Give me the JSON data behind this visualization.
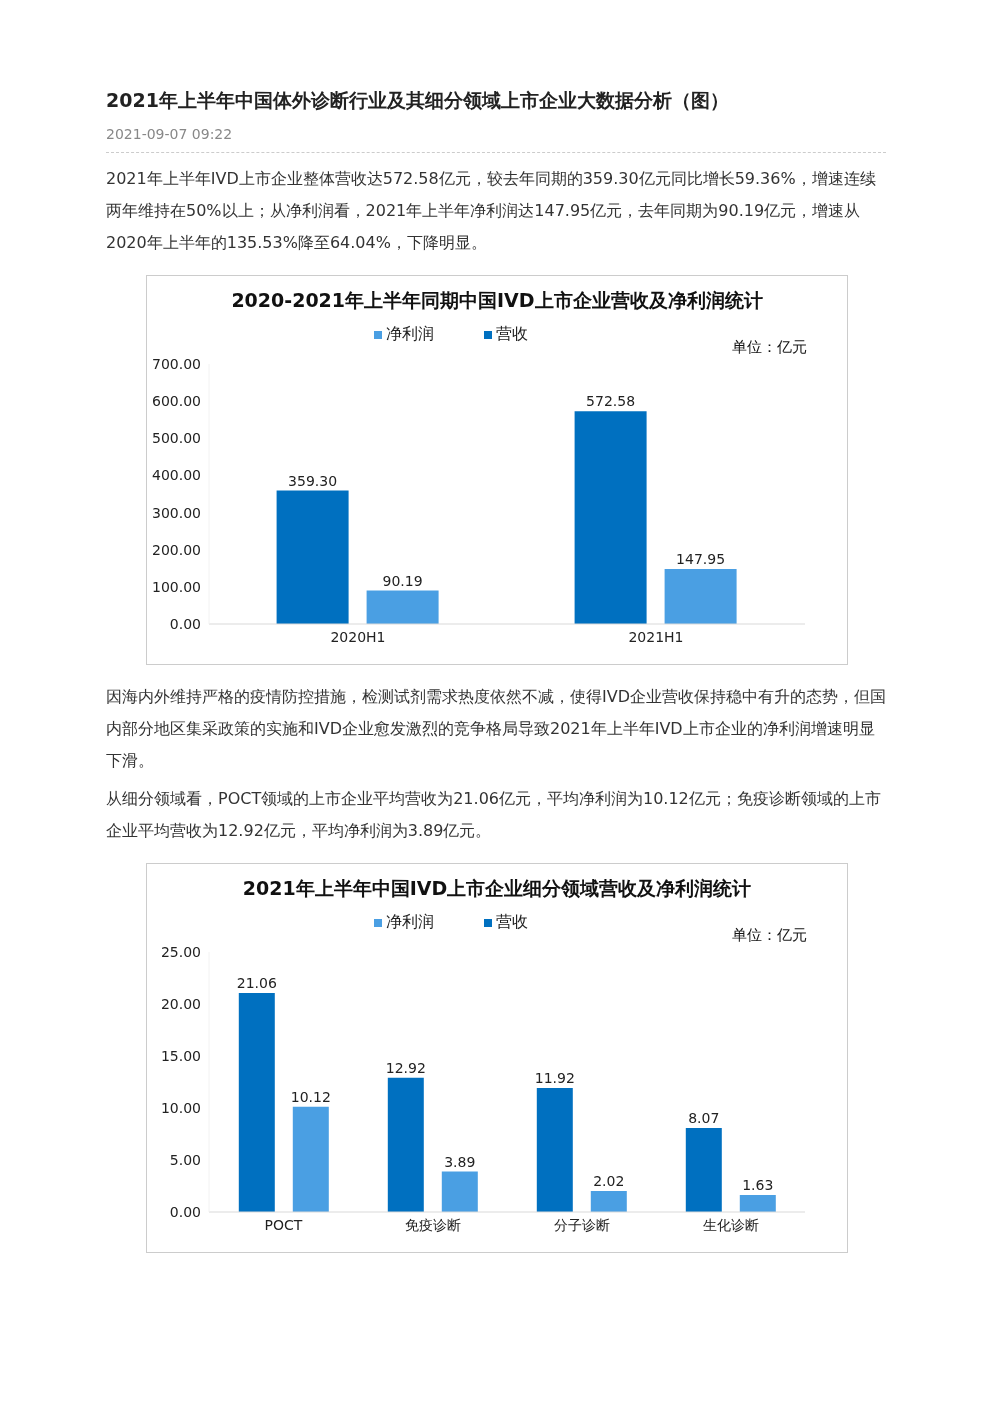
{
  "chart_data": [
    {
      "type": "bar",
      "title": "2020-2021年上半年同期中国IVD上市企业营收及净利润统计",
      "ylabel": "单位：亿元",
      "categories": [
        "2020H1",
        "2021H1"
      ],
      "series": [
        {
          "name": "营收",
          "color": "#0070c0",
          "values": [
            359.3,
            572.58
          ],
          "value_labels": [
            "359.30",
            "572.58"
          ]
        },
        {
          "name": "净利润",
          "color": "#4a9fe3",
          "values": [
            90.19,
            147.95
          ],
          "value_labels": [
            "90.19",
            "147.95"
          ]
        }
      ],
      "ylim": [
        0,
        700
      ],
      "yticks": [
        {
          "value": 0,
          "label": "0.00"
        },
        {
          "value": 100,
          "label": "100.00"
        },
        {
          "value": 200,
          "label": "200.00"
        },
        {
          "value": 300,
          "label": "300.00"
        },
        {
          "value": 400,
          "label": "400.00"
        },
        {
          "value": 500,
          "label": "500.00"
        },
        {
          "value": 600,
          "label": "600.00"
        },
        {
          "value": 700,
          "label": "700.00"
        }
      ],
      "legend": "top",
      "annotations": [
        "2021年上半年中国体外诊断行业及其细分领域上市企业大数据分析（图）",
        "2021-09-07 09:22",
        "2021年上半年IVD上市企业整体营收达572.58亿元，较去年同期的359.30亿元同比增长59.36%，增速连续两年维持在50%以上；从净利润看，2021年上半年净利润达147.95亿元，去年同期为90.19亿元，增速从2020年上半年的135.53%降至64.04%，下降明显。"
      ]
    },
    {
      "type": "bar",
      "title": "2021年上半年中国IVD上市企业细分领域营收及净利润统计",
      "ylabel": "单位：亿元",
      "categories": [
        "POCT",
        "免疫诊断",
        "分子诊断",
        "生化诊断"
      ],
      "series": [
        {
          "name": "营收",
          "color": "#0070c0",
          "values": [
            21.06,
            12.92,
            11.92,
            8.07
          ],
          "value_labels": [
            "21.06",
            "12.92",
            "11.92",
            "8.07"
          ]
        },
        {
          "name": "净利润",
          "color": "#4a9fe3",
          "values": [
            10.12,
            3.89,
            2.02,
            1.63
          ],
          "value_labels": [
            "10.12",
            "3.89",
            "2.02",
            "1.63"
          ]
        }
      ],
      "ylim": [
        0,
        25
      ],
      "yticks": [
        {
          "value": 0,
          "label": "0.00"
        },
        {
          "value": 5,
          "label": "5.00"
        },
        {
          "value": 10,
          "label": "10.00"
        },
        {
          "value": 15,
          "label": "15.00"
        },
        {
          "value": 20,
          "label": "20.00"
        },
        {
          "value": 25,
          "label": "25.00"
        }
      ],
      "legend": "top",
      "annotations": [
        "因海内外维持严格的疫情防控措施，检测试剂需求热度依然不减，使得IVD企业营收保持稳中有升的态势，但国内部分地区集采政策的实施和IVD企业愈发激烈的竞争格局导致2021年上半年IVD上市企业的净利润增速明显下滑。",
        "从细分领域看，POCT领域的上市企业平均营收为21.06亿元，平均净利润为10.12亿元；免疫诊断领域的上市企业平均营收为12.92亿元，平均净利润为3.89亿元。"
      ]
    }
  ]
}
